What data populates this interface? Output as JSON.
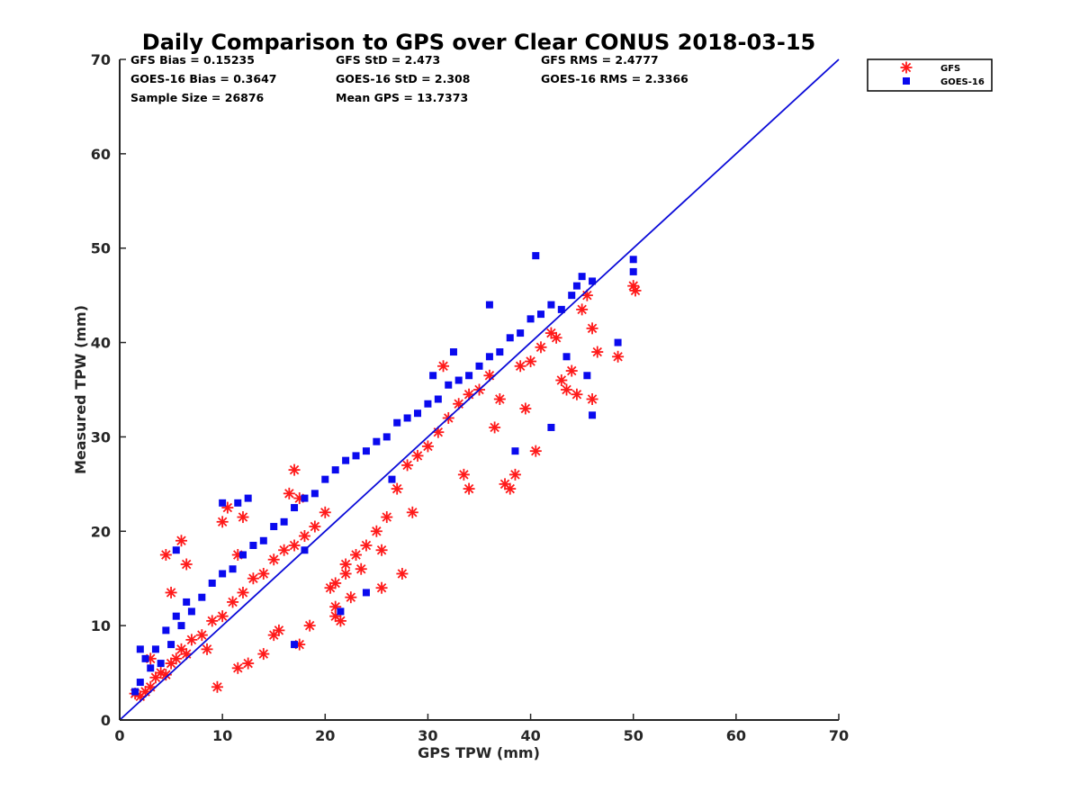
{
  "colors": {
    "gfs": "#ff1a1a",
    "goes16": "#0a0aee",
    "one_to_one": "#0a0ad8",
    "axis": "#262626"
  },
  "stats": {
    "gfs_bias": "GFS Bias = 0.15235",
    "gfs_std": "GFS StD = 2.473",
    "gfs_rms": "GFS RMS = 2.4777",
    "goes_bias": "GOES-16 Bias = 0.3647",
    "goes_std": "GOES-16 StD = 2.308",
    "goes_rms": "GOES-16 RMS = 2.3366",
    "sample_size": "Sample Size = 26876",
    "mean_gps": "Mean GPS = 13.7373"
  },
  "chart_data": {
    "type": "scatter",
    "title": "Daily Comparison to GPS over Clear CONUS 2018-03-15",
    "xlabel": "GPS TPW (mm)",
    "ylabel": "Measured TPW (mm)",
    "xlim": [
      0,
      70
    ],
    "ylim": [
      0,
      70
    ],
    "xticks": [
      "0",
      "10",
      "20",
      "30",
      "40",
      "50",
      "60",
      "70"
    ],
    "yticks": [
      "0",
      "10",
      "20",
      "30",
      "40",
      "50",
      "60",
      "70"
    ],
    "legend_position": "outside top-right",
    "reference_line": {
      "name": "1:1 line",
      "x": [
        0,
        70
      ],
      "y": [
        0,
        70
      ]
    },
    "series": [
      {
        "name": "GFS",
        "marker": "asterisk",
        "x": [
          1.5,
          2.0,
          2.5,
          3.0,
          3.5,
          4.0,
          4.5,
          5.0,
          5.5,
          6.0,
          6.5,
          7.0,
          8.0,
          9.0,
          10.0,
          11.0,
          12.0,
          13.0,
          14.0,
          15.0,
          16.0,
          17.0,
          17.5,
          18.0,
          19.0,
          20.0,
          21.0,
          21.5,
          22.0,
          22.5,
          23.0,
          24.0,
          25.0,
          25.5,
          26.0,
          27.0,
          27.5,
          28.0,
          29.0,
          30.0,
          31.0,
          32.0,
          33.0,
          34.0,
          35.0,
          36.0,
          37.0,
          37.5,
          38.0,
          38.5,
          39.0,
          39.5,
          40.0,
          41.0,
          42.0,
          42.5,
          43.0,
          44.0,
          45.0,
          45.5,
          46.0,
          46.5,
          48.5,
          50.0,
          50.2,
          4.5,
          5.0,
          6.0,
          6.5,
          10.0,
          10.5,
          11.5,
          12.0,
          16.5,
          17.0,
          3.0,
          8.5,
          11.5,
          14.0,
          15.5,
          9.5,
          12.5,
          15.0,
          18.5,
          21.0,
          23.5,
          22.0,
          25.5,
          28.5,
          33.5,
          34.0,
          31.5,
          36.5,
          40.5,
          43.5,
          44.5,
          46.0,
          20.5,
          21.0,
          17.5
        ],
        "y": [
          2.8,
          2.5,
          3.0,
          3.5,
          4.5,
          5.0,
          4.8,
          6.0,
          6.5,
          7.5,
          7.0,
          8.5,
          9.0,
          10.5,
          11.0,
          12.5,
          13.5,
          15.0,
          15.5,
          17.0,
          18.0,
          18.5,
          8.0,
          19.5,
          20.5,
          22.0,
          11.0,
          10.5,
          16.5,
          13.0,
          17.5,
          18.5,
          20.0,
          14.0,
          21.5,
          24.5,
          15.5,
          27.0,
          28.0,
          29.0,
          30.5,
          32.0,
          33.5,
          34.5,
          35.0,
          36.5,
          34.0,
          25.0,
          24.5,
          26.0,
          37.5,
          33.0,
          38.0,
          39.5,
          41.0,
          40.5,
          36.0,
          37.0,
          43.5,
          45.0,
          41.5,
          39.0,
          38.5,
          46.0,
          45.5,
          17.5,
          13.5,
          19.0,
          16.5,
          21.0,
          22.5,
          17.5,
          21.5,
          24.0,
          26.5,
          6.5,
          7.5,
          5.5,
          7.0,
          9.5,
          3.5,
          6.0,
          9.0,
          10.0,
          14.5,
          16.0,
          15.5,
          18.0,
          22.0,
          26.0,
          24.5,
          37.5,
          31.0,
          28.5,
          35.0,
          34.5,
          34.0,
          14.0,
          12.0,
          23.5
        ]
      },
      {
        "name": "GOES-16",
        "marker": "square",
        "x": [
          1.5,
          2.0,
          2.5,
          3.0,
          3.5,
          4.0,
          4.5,
          5.0,
          5.5,
          6.0,
          6.5,
          7.0,
          8.0,
          9.0,
          10.0,
          11.0,
          12.0,
          13.0,
          14.0,
          15.0,
          16.0,
          17.0,
          18.0,
          19.0,
          20.0,
          21.0,
          22.0,
          23.0,
          24.0,
          25.0,
          26.0,
          27.0,
          28.0,
          29.0,
          30.0,
          31.0,
          32.0,
          33.0,
          34.0,
          35.0,
          36.0,
          37.0,
          38.0,
          39.0,
          40.0,
          40.5,
          41.0,
          42.0,
          43.0,
          44.0,
          44.5,
          45.0,
          46.0,
          46.0,
          48.5,
          50.0,
          50.0,
          2.0,
          5.5,
          10.0,
          11.5,
          12.5,
          17.0,
          18.0,
          21.5,
          24.0,
          26.5,
          30.5,
          32.5,
          36.0,
          38.5,
          42.0,
          43.5,
          45.5
        ],
        "y": [
          3.0,
          4.0,
          6.5,
          5.5,
          7.5,
          6.0,
          9.5,
          8.0,
          11.0,
          10.0,
          12.5,
          11.5,
          13.0,
          14.5,
          15.5,
          16.0,
          17.5,
          18.5,
          19.0,
          20.5,
          21.0,
          22.5,
          23.5,
          24.0,
          25.5,
          26.5,
          27.5,
          28.0,
          28.5,
          29.5,
          30.0,
          31.5,
          32.0,
          32.5,
          33.5,
          34.0,
          35.5,
          36.0,
          36.5,
          37.5,
          38.5,
          39.0,
          40.5,
          41.0,
          42.5,
          49.2,
          43.0,
          44.0,
          43.5,
          45.0,
          46.0,
          47.0,
          46.5,
          32.3,
          40.0,
          47.5,
          48.8,
          7.5,
          18.0,
          23.0,
          23.0,
          23.5,
          8.0,
          18.0,
          11.5,
          13.5,
          25.5,
          36.5,
          39.0,
          44.0,
          28.5,
          31.0,
          38.5,
          36.5
        ]
      }
    ]
  }
}
